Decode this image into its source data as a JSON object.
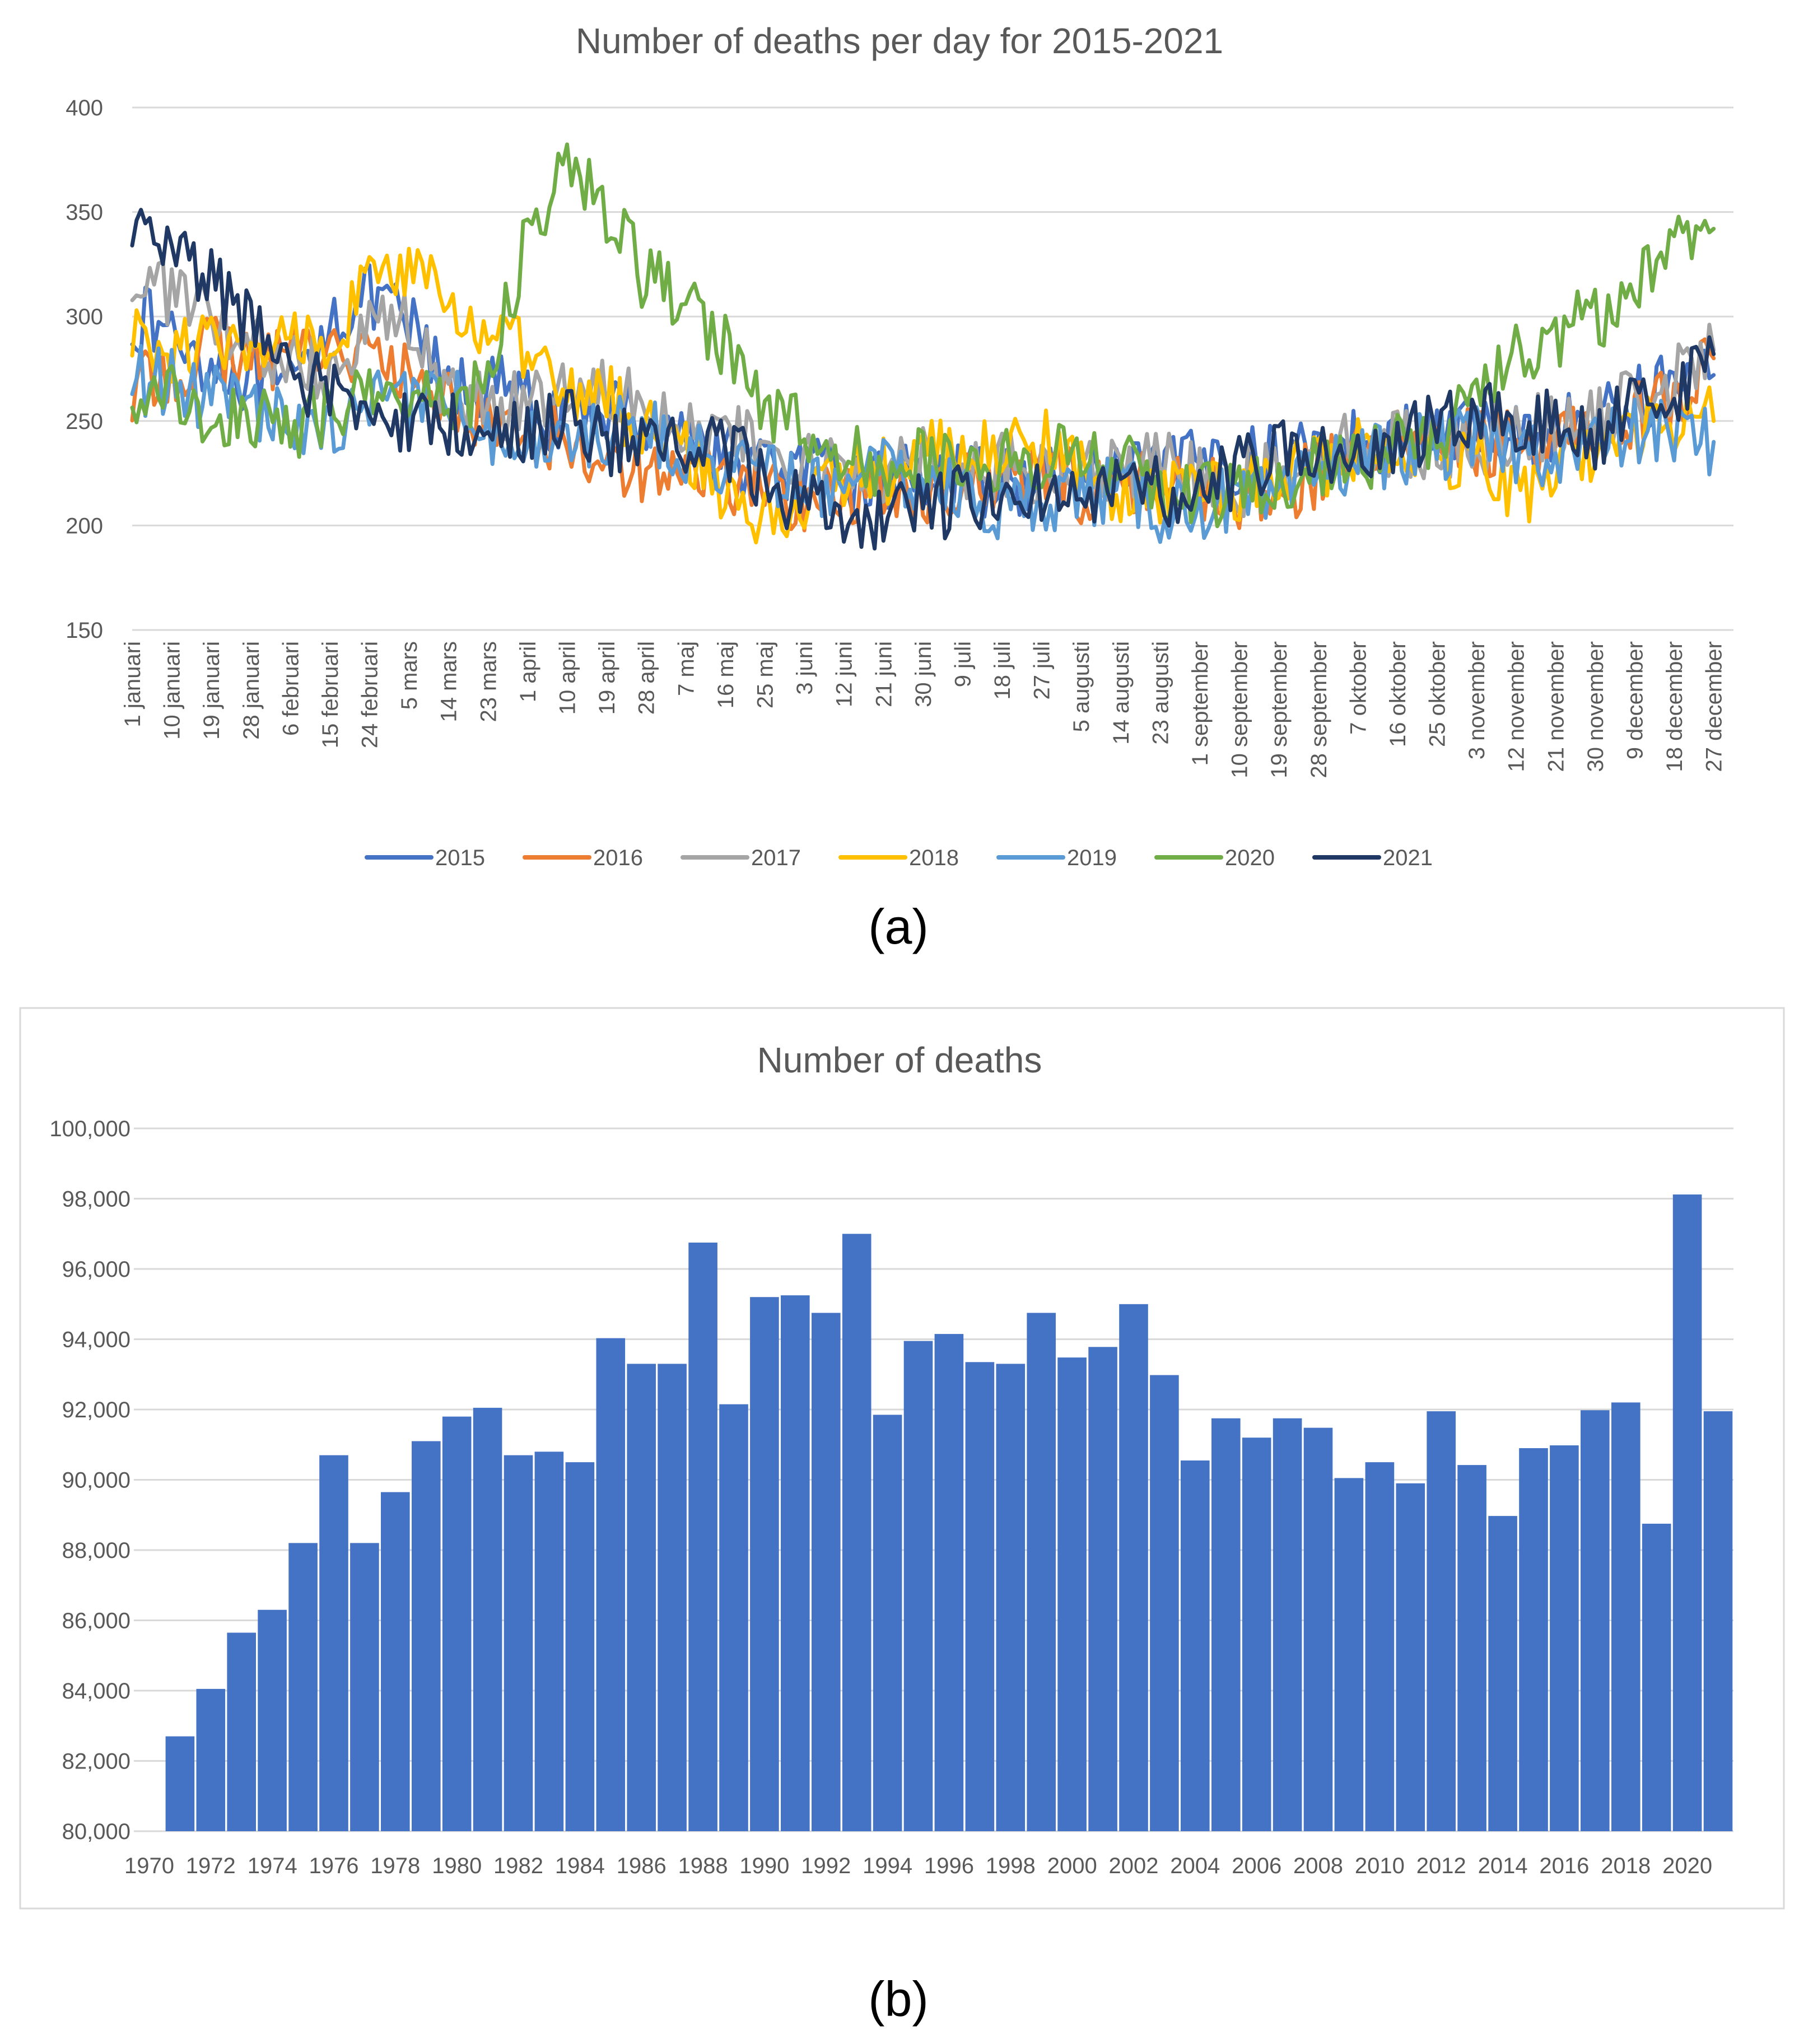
{
  "chart_data": [
    {
      "type": "line",
      "title": "Number of deaths per day for 2015-2021",
      "panel_label": "(a)",
      "xlabel": "",
      "ylabel": "",
      "ylim": [
        150,
        400
      ],
      "yticks": [
        "150",
        "200",
        "250",
        "300",
        "350",
        "400"
      ],
      "grid": true,
      "legend_position": "bottom",
      "x": [
        "1 januari",
        "10 januari",
        "19 januari",
        "28 januari",
        "6 februari",
        "15 februari",
        "24 februari",
        "5 mars",
        "14 mars",
        "23 mars",
        "1 april",
        "10 april",
        "19 april",
        "28 april",
        "7 maj",
        "16 maj",
        "25 maj",
        "3 juni",
        "12 juni",
        "21 juni",
        "30 juni",
        "9 juli",
        "18 juli",
        "27 juli",
        "5 augusti",
        "14 augusti",
        "23 augusti",
        "1 september",
        "10 september",
        "19 september",
        "28 september",
        "7 oktober",
        "16 oktober",
        "25 oktober",
        "3 november",
        "12 november",
        "21 november",
        "30 november",
        "9 december",
        "18 december",
        "27 december"
      ],
      "series": [
        {
          "name": "2015",
          "color": "#4472C4",
          "values": [
            300,
            292,
            278,
            270,
            262,
            300,
            308,
            296,
            265,
            268,
            258,
            248,
            258,
            250,
            245,
            232,
            228,
            226,
            222,
            220,
            226,
            222,
            220,
            222,
            224,
            222,
            224,
            230,
            232,
            232,
            238,
            240,
            242,
            244,
            246,
            244,
            246,
            250,
            260,
            270,
            272
          ]
        },
        {
          "name": "2016",
          "color": "#ED7D31",
          "values": [
            262,
            275,
            285,
            278,
            285,
            288,
            280,
            270,
            260,
            250,
            245,
            240,
            232,
            228,
            224,
            222,
            218,
            212,
            214,
            214,
            218,
            220,
            218,
            226,
            218,
            220,
            220,
            218,
            214,
            218,
            224,
            232,
            238,
            238,
            240,
            238,
            240,
            248,
            254,
            262,
            280
          ]
        },
        {
          "name": "2017",
          "color": "#A5A5A5",
          "values": [
            318,
            312,
            296,
            285,
            280,
            275,
            300,
            295,
            262,
            255,
            262,
            266,
            268,
            264,
            246,
            242,
            236,
            228,
            226,
            226,
            236,
            228,
            228,
            222,
            225,
            225,
            228,
            226,
            220,
            225,
            240,
            236,
            240,
            238,
            238,
            248,
            246,
            248,
            262,
            268,
            284
          ]
        },
        {
          "name": "2018",
          "color": "#FFC000",
          "values": [
            290,
            284,
            286,
            278,
            292,
            290,
            318,
            320,
            306,
            292,
            280,
            262,
            262,
            246,
            238,
            214,
            202,
            214,
            224,
            226,
            236,
            232,
            236,
            240,
            224,
            212,
            212,
            218,
            214,
            228,
            228,
            238,
            236,
            236,
            230,
            216,
            222,
            240,
            246,
            246,
            250
          ]
        },
        {
          "name": "2019",
          "color": "#5B9BD5",
          "values": [
            270,
            268,
            262,
            254,
            252,
            244,
            262,
            258,
            264,
            246,
            238,
            240,
            246,
            246,
            234,
            230,
            222,
            220,
            218,
            224,
            222,
            214,
            206,
            214,
            216,
            216,
            208,
            210,
            212,
            210,
            226,
            232,
            236,
            238,
            240,
            236,
            236,
            238,
            244,
            244,
            240
          ]
        },
        {
          "name": "2020",
          "color": "#70AD47",
          "values": [
            262,
            262,
            254,
            250,
            248,
            256,
            262,
            262,
            256,
            268,
            340,
            375,
            348,
            318,
            310,
            286,
            252,
            244,
            232,
            230,
            232,
            232,
            232,
            232,
            234,
            228,
            220,
            214,
            216,
            222,
            226,
            232,
            238,
            242,
            260,
            282,
            290,
            300,
            312,
            334,
            342
          ]
        },
        {
          "name": "2021",
          "color": "#203864",
          "values": [
            338,
            336,
            316,
            294,
            272,
            264,
            256,
            246,
            250,
            240,
            246,
            250,
            240,
            238,
            240,
            238,
            222,
            210,
            204,
            206,
            208,
            212,
            218,
            218,
            216,
            216,
            216,
            218,
            226,
            236,
            238,
            236,
            240,
            248,
            252,
            252,
            250,
            244,
            256,
            262,
            282
          ]
        }
      ]
    },
    {
      "type": "bar",
      "title": "Number of deaths",
      "panel_label": "(b)",
      "xlabel": "",
      "ylabel": "",
      "ylim": [
        80000,
        100000
      ],
      "yticks": [
        "80,000",
        "82,000",
        "84,000",
        "86,000",
        "88,000",
        "90,000",
        "92,000",
        "94,000",
        "96,000",
        "98,000",
        "100,000"
      ],
      "grid": true,
      "categories": [
        "1970",
        "1971",
        "1972",
        "1973",
        "1974",
        "1975",
        "1976",
        "1977",
        "1978",
        "1979",
        "1980",
        "1981",
        "1982",
        "1983",
        "1984",
        "1985",
        "1986",
        "1987",
        "1988",
        "1989",
        "1990",
        "1991",
        "1992",
        "1993",
        "1994",
        "1995",
        "1996",
        "1997",
        "1998",
        "1999",
        "2000",
        "2001",
        "2002",
        "2003",
        "2004",
        "2005",
        "2006",
        "2007",
        "2008",
        "2009",
        "2010",
        "2011",
        "2012",
        "2013",
        "2014",
        "2015",
        "2016",
        "2017",
        "2018",
        "2019",
        "2020",
        "2021"
      ],
      "x_tick_labels": [
        "1970",
        "1972",
        "1974",
        "1976",
        "1978",
        "1980",
        "1982",
        "1984",
        "1986",
        "1988",
        "1990",
        "1992",
        "1994",
        "1996",
        "1998",
        "2000",
        "2002",
        "2004",
        "2006",
        "2008",
        "2010",
        "2012",
        "2014",
        "2016",
        "2018",
        "2020"
      ],
      "values": [
        80000,
        82700,
        84050,
        85650,
        86300,
        88200,
        90700,
        88200,
        89650,
        91100,
        91800,
        92050,
        90700,
        90800,
        90500,
        94030,
        93300,
        93300,
        96750,
        92150,
        95200,
        95250,
        94750,
        97000,
        91850,
        93950,
        94150,
        93350,
        93300,
        94750,
        93480,
        93780,
        95000,
        92980,
        90550,
        91750,
        91200,
        91750,
        91480,
        90050,
        90500,
        89900,
        91950,
        90420,
        88970,
        90900,
        90980,
        91980,
        92200,
        88750,
        98120,
        91950
      ],
      "color": "#4472C4"
    }
  ]
}
